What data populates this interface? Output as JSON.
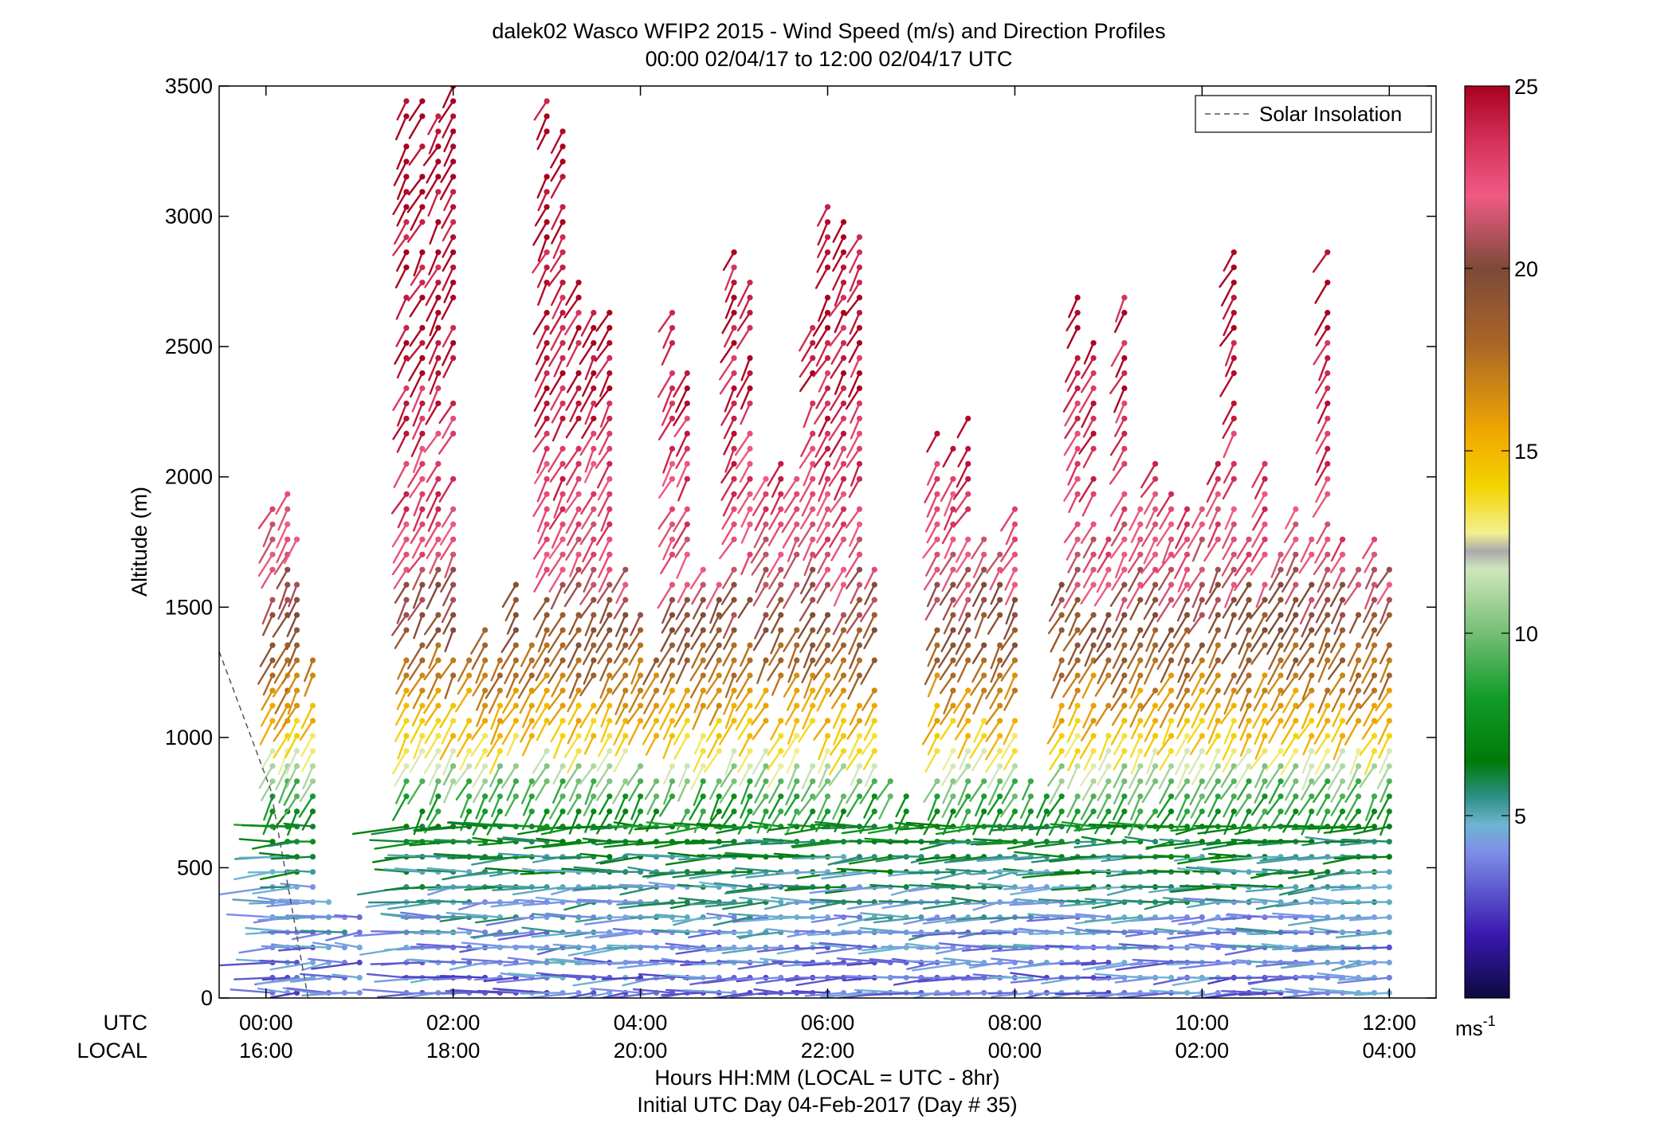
{
  "chart_data": {
    "type": "scatter",
    "title": "dalek02 Wasco WFIP2 2015 - Wind Speed (m/s) and Direction Profiles",
    "subtitle": "00:00 02/04/17 to 12:00 02/04/17  UTC",
    "ylabel": "Altitude (m)",
    "xlabel_1": "Hours HH:MM  (LOCAL = UTC - 8hr)",
    "xlabel_2": "Initial UTC Day 04-Feb-2017 (Day # 35)",
    "xlim": [
      -0.5,
      12.5
    ],
    "ylim": [
      0,
      3500
    ],
    "y_ticks": [
      0,
      500,
      1000,
      1500,
      2000,
      2500,
      3000,
      3500
    ],
    "y_tick_labels": [
      "0",
      "500",
      "1000",
      "1500",
      "2000",
      "2500",
      "3000",
      "3500"
    ],
    "x_ticks": [
      0,
      2,
      4,
      6,
      8,
      10,
      12
    ],
    "x_row_labels": [
      "UTC",
      "LOCAL"
    ],
    "x_utc_labels": [
      "00:00",
      "02:00",
      "04:00",
      "06:00",
      "08:00",
      "10:00",
      "12:00"
    ],
    "x_local_labels": [
      "16:00",
      "18:00",
      "20:00",
      "22:00",
      "00:00",
      "02:00",
      "04:00"
    ],
    "legend": {
      "entries": [
        "Solar Insolation"
      ],
      "position": "top-right"
    },
    "colorbar": {
      "range": [
        0,
        25
      ],
      "ticks": [
        5,
        10,
        15,
        20,
        25
      ],
      "tick_labels": [
        "5",
        "10",
        "15",
        "20",
        "25"
      ],
      "unit_label": "ms",
      "unit_exponent": "-1"
    },
    "solar_insolation": {
      "x": [
        -0.5,
        0.05,
        0.45
      ],
      "y": [
        1330,
        800,
        0
      ]
    },
    "profile_times_utc": [
      0.07,
      0.23,
      0.33,
      0.5,
      0.67,
      0.84,
      1.0,
      1.5,
      1.67,
      1.84,
      2.0,
      2.17,
      2.34,
      2.5,
      2.67,
      2.84,
      3.0,
      3.17,
      3.34,
      3.5,
      3.67,
      3.84,
      4.0,
      4.17,
      4.34,
      4.5,
      4.67,
      4.84,
      5.0,
      5.17,
      5.34,
      5.5,
      5.67,
      5.84,
      6.0,
      6.17,
      6.34,
      6.5,
      6.67,
      6.84,
      7.0,
      7.17,
      7.34,
      7.5,
      7.67,
      7.84,
      8.0,
      8.17,
      8.34,
      8.5,
      8.67,
      8.84,
      9.0,
      9.17,
      9.34,
      9.5,
      9.67,
      9.84,
      10.0,
      10.17,
      10.34,
      10.5,
      10.67,
      10.84,
      11.0,
      11.17,
      11.34,
      11.5,
      11.67,
      11.84,
      12.0
    ],
    "profile_tops_m": [
      1900,
      1950,
      1800,
      1350,
      400,
      330,
      320,
      3450,
      3450,
      3400,
      3500,
      1350,
      1450,
      1300,
      1600,
      1400,
      3450,
      3450,
      2750,
      2650,
      2650,
      1700,
      1500,
      1300,
      2650,
      2450,
      1700,
      1600,
      2900,
      2750,
      2100,
      2100,
      2000,
      2600,
      3050,
      3000,
      2950,
      1700,
      850,
      800,
      750,
      2200,
      2200,
      2250,
      1800,
      1750,
      1900,
      850,
      800,
      1700,
      2700,
      2550,
      1800,
      2750,
      1900,
      2050,
      1950,
      1900,
      1900,
      2050,
      2900,
      1800,
      2050,
      1800,
      1900,
      1800,
      2900,
      1800,
      1700,
      1800,
      1700
    ],
    "speed_samples": [
      {
        "alt_m": 50,
        "ms": 3.5
      },
      {
        "alt_m": 300,
        "ms": 4.5
      },
      {
        "alt_m": 600,
        "ms": 6.5
      },
      {
        "alt_m": 800,
        "ms": 9
      },
      {
        "alt_m": 1000,
        "ms": 14
      },
      {
        "alt_m": 1300,
        "ms": 18
      },
      {
        "alt_m": 1700,
        "ms": 22
      },
      {
        "alt_m": 2300,
        "ms": 24
      },
      {
        "alt_m": 3200,
        "ms": 25
      }
    ]
  }
}
